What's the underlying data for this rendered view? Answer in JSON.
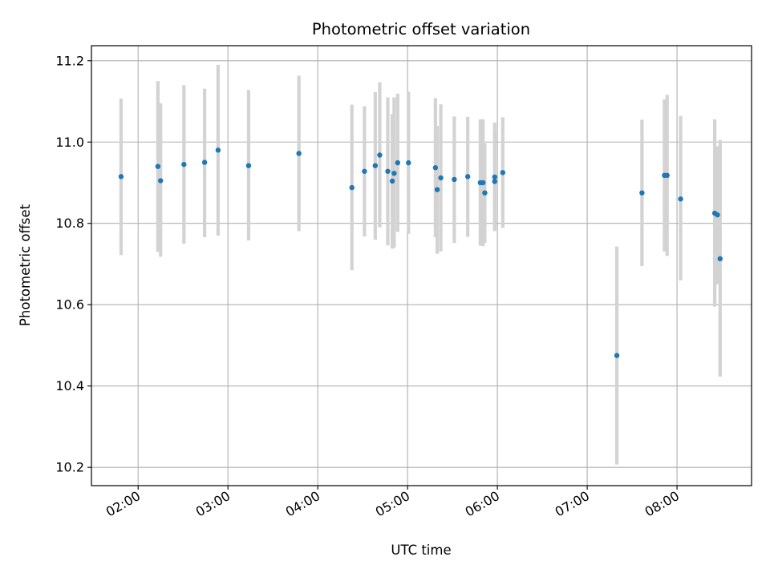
{
  "chart_data": {
    "type": "scatter",
    "title": "Photometric offset variation",
    "xlabel": "UTC time",
    "ylabel": "Photometric offset",
    "grid": true,
    "xlim": [
      1.48,
      8.83
    ],
    "ylim": [
      10.155,
      11.237
    ],
    "x_ticks": [
      2,
      3,
      4,
      5,
      6,
      7,
      8
    ],
    "x_tick_labels": [
      "02:00",
      "03:00",
      "04:00",
      "05:00",
      "06:00",
      "07:00",
      "08:00"
    ],
    "y_ticks": [
      10.2,
      10.4,
      10.6,
      10.8,
      11.0,
      11.2
    ],
    "y_tick_labels": [
      "10.2",
      "10.4",
      "10.6",
      "10.8",
      "11.0",
      "11.2"
    ],
    "colors": {
      "marker": "#1f77b4",
      "errorbar": "#d3d3d3",
      "grid": "#b0b0b0"
    },
    "series": [
      {
        "name": "offset",
        "points": [
          {
            "x": 1.81,
            "y": 10.915,
            "lo": 10.722,
            "hi": 11.107
          },
          {
            "x": 2.22,
            "y": 10.94,
            "lo": 10.73,
            "hi": 11.15
          },
          {
            "x": 2.25,
            "y": 10.905,
            "lo": 10.718,
            "hi": 11.095
          },
          {
            "x": 2.51,
            "y": 10.945,
            "lo": 10.75,
            "hi": 11.14
          },
          {
            "x": 2.74,
            "y": 10.95,
            "lo": 10.766,
            "hi": 11.131
          },
          {
            "x": 2.89,
            "y": 10.98,
            "lo": 10.77,
            "hi": 11.19
          },
          {
            "x": 3.23,
            "y": 10.942,
            "lo": 10.758,
            "hi": 11.128
          },
          {
            "x": 3.79,
            "y": 10.972,
            "lo": 10.781,
            "hi": 11.163
          },
          {
            "x": 4.38,
            "y": 10.888,
            "lo": 10.685,
            "hi": 11.092
          },
          {
            "x": 4.52,
            "y": 10.928,
            "lo": 10.768,
            "hi": 11.088
          },
          {
            "x": 4.64,
            "y": 10.942,
            "lo": 10.76,
            "hi": 11.123
          },
          {
            "x": 4.69,
            "y": 10.968,
            "lo": 10.79,
            "hi": 11.147
          },
          {
            "x": 4.78,
            "y": 10.928,
            "lo": 10.746,
            "hi": 11.11
          },
          {
            "x": 4.83,
            "y": 10.904,
            "lo": 10.738,
            "hi": 11.069
          },
          {
            "x": 4.85,
            "y": 10.923,
            "lo": 10.74,
            "hi": 11.11
          },
          {
            "x": 4.89,
            "y": 10.949,
            "lo": 10.779,
            "hi": 11.119
          },
          {
            "x": 5.01,
            "y": 10.949,
            "lo": 10.774,
            "hi": 11.124
          },
          {
            "x": 5.31,
            "y": 10.937,
            "lo": 10.766,
            "hi": 11.108
          },
          {
            "x": 5.33,
            "y": 10.883,
            "lo": 10.725,
            "hi": 11.04
          },
          {
            "x": 5.37,
            "y": 10.912,
            "lo": 10.731,
            "hi": 11.093
          },
          {
            "x": 5.52,
            "y": 10.908,
            "lo": 10.752,
            "hi": 11.063
          },
          {
            "x": 5.67,
            "y": 10.915,
            "lo": 10.767,
            "hi": 11.062
          },
          {
            "x": 5.81,
            "y": 10.9,
            "lo": 10.745,
            "hi": 11.056
          },
          {
            "x": 5.84,
            "y": 10.9,
            "lo": 10.744,
            "hi": 11.056
          },
          {
            "x": 5.86,
            "y": 10.875,
            "lo": 10.752,
            "hi": 10.997
          },
          {
            "x": 5.97,
            "y": 10.914,
            "lo": 10.79,
            "hi": 11.048
          },
          {
            "x": 5.97,
            "y": 10.903,
            "lo": 10.781,
            "hi": 11.025
          },
          {
            "x": 6.06,
            "y": 10.925,
            "lo": 10.789,
            "hi": 11.061
          },
          {
            "x": 7.33,
            "y": 10.475,
            "lo": 10.207,
            "hi": 10.743
          },
          {
            "x": 7.61,
            "y": 10.875,
            "lo": 10.695,
            "hi": 11.055
          },
          {
            "x": 7.86,
            "y": 10.918,
            "lo": 10.731,
            "hi": 11.105
          },
          {
            "x": 7.89,
            "y": 10.918,
            "lo": 10.72,
            "hi": 11.116
          },
          {
            "x": 8.04,
            "y": 10.86,
            "lo": 10.66,
            "hi": 11.064
          },
          {
            "x": 8.42,
            "y": 10.825,
            "lo": 10.595,
            "hi": 11.056
          },
          {
            "x": 8.45,
            "y": 10.821,
            "lo": 10.65,
            "hi": 10.99
          },
          {
            "x": 8.48,
            "y": 10.713,
            "lo": 10.423,
            "hi": 11.005
          }
        ]
      }
    ]
  }
}
